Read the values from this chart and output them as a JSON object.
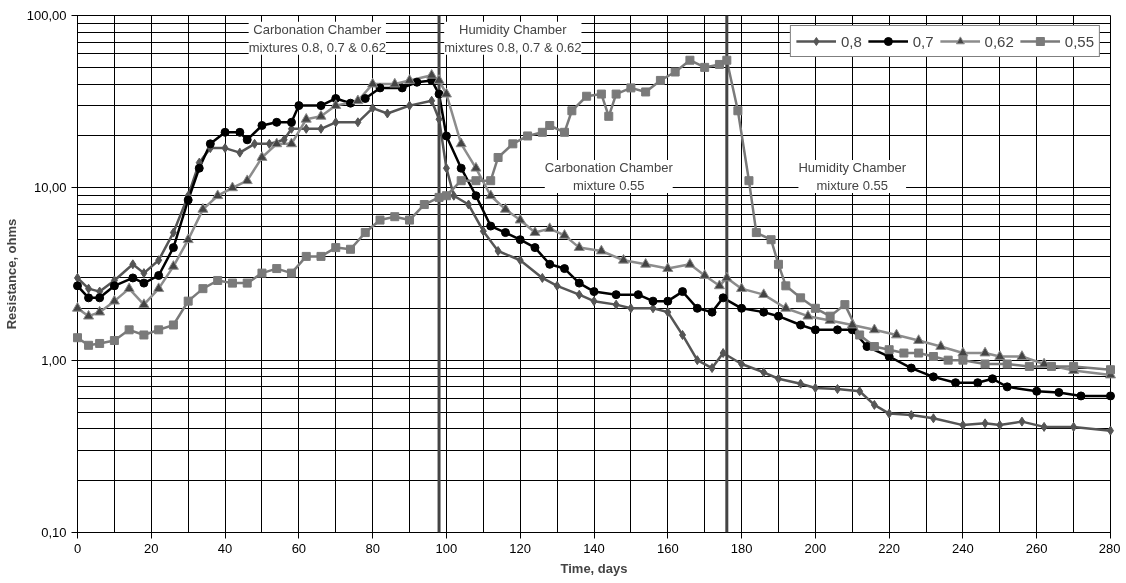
{
  "chart_data": {
    "type": "line",
    "xlabel": "Time, days",
    "ylabel": "Resistance, ohms",
    "log": "y",
    "xlim": [
      0,
      280
    ],
    "xticks": [
      0,
      20,
      40,
      60,
      80,
      100,
      120,
      140,
      160,
      180,
      200,
      220,
      240,
      260,
      280
    ],
    "ylim": [
      0.1,
      100
    ],
    "yticks": [
      {
        "value": 0.1,
        "label": "0,10"
      },
      {
        "value": 1,
        "label": "1,00"
      },
      {
        "value": 10,
        "label": "10,00"
      },
      {
        "value": 100,
        "label": "100,00"
      }
    ],
    "grid": true,
    "legend": "top right",
    "ref_lines": [
      {
        "axis": "x",
        "value": 98,
        "color": "#444444"
      },
      {
        "axis": "x",
        "value": 176,
        "color": "#444444"
      }
    ],
    "annotations": [
      "Carbonation Chamber\nmixtures 0.8, 0.7 & 0.62",
      "Humidity Chamber\nmixtures 0.8, 0.7 & 0.62",
      "Carbonation Chamber\nmixture 0.55",
      "Humidity Chamber\nmixture 0.55"
    ],
    "series": [
      {
        "name": "0,8",
        "color": "#555555",
        "marker": "diamond",
        "x": [
          0,
          3,
          6,
          10,
          15,
          18,
          22,
          26,
          30,
          33,
          36,
          40,
          44,
          48,
          52,
          56,
          58,
          62,
          66,
          70,
          76,
          80,
          84,
          90,
          96,
          98,
          100,
          102,
          106,
          110,
          114,
          120,
          126,
          130,
          136,
          140,
          146,
          150,
          156,
          160,
          164,
          168,
          172,
          175,
          180,
          186,
          190,
          196,
          200,
          206,
          212,
          216,
          220,
          226,
          232,
          240,
          246,
          250,
          256,
          262,
          270,
          280
        ],
        "values": [
          3.0,
          2.6,
          2.5,
          2.9,
          3.6,
          3.2,
          3.8,
          5.5,
          9,
          14,
          17,
          17,
          16,
          18,
          18,
          19,
          22,
          22,
          22,
          24,
          24,
          29,
          27,
          30,
          32,
          25,
          13,
          9,
          8,
          5.6,
          4.3,
          3.8,
          3.0,
          2.7,
          2.4,
          2.2,
          2.1,
          2.0,
          2.0,
          1.9,
          1.4,
          1.0,
          0.9,
          1.1,
          0.95,
          0.85,
          0.78,
          0.73,
          0.69,
          0.68,
          0.66,
          0.55,
          0.49,
          0.48,
          0.46,
          0.42,
          0.43,
          0.42,
          0.44,
          0.41,
          0.41,
          0.39
        ]
      },
      {
        "name": "0,7",
        "color": "#000000",
        "marker": "circle",
        "x": [
          0,
          3,
          6,
          10,
          15,
          18,
          22,
          26,
          30,
          33,
          36,
          40,
          44,
          46,
          50,
          54,
          58,
          60,
          66,
          70,
          74,
          78,
          82,
          88,
          92,
          96,
          98,
          100,
          104,
          108,
          112,
          116,
          120,
          124,
          128,
          132,
          136,
          140,
          146,
          152,
          156,
          160,
          164,
          168,
          172,
          175,
          180,
          186,
          190,
          196,
          200,
          206,
          210,
          214,
          220,
          226,
          232,
          238,
          244,
          248,
          252,
          260,
          266,
          272,
          280
        ],
        "values": [
          2.7,
          2.3,
          2.3,
          2.7,
          3.0,
          2.8,
          3.1,
          4.5,
          8.5,
          13,
          18,
          21,
          21,
          19,
          23,
          24,
          24,
          30,
          30,
          33,
          31,
          33,
          38,
          38,
          41,
          42,
          35,
          20,
          13,
          9,
          6,
          5.5,
          5.0,
          4.5,
          3.6,
          3.4,
          2.8,
          2.5,
          2.4,
          2.4,
          2.2,
          2.2,
          2.5,
          2.0,
          1.9,
          2.3,
          2.0,
          1.9,
          1.8,
          1.6,
          1.5,
          1.5,
          1.5,
          1.2,
          1.05,
          0.9,
          0.8,
          0.74,
          0.74,
          0.78,
          0.7,
          0.66,
          0.65,
          0.62,
          0.62
        ]
      },
      {
        "name": "0,62",
        "color": "#8c8c8c",
        "marker": "triangle",
        "x": [
          0,
          3,
          6,
          10,
          14,
          18,
          22,
          26,
          30,
          34,
          38,
          42,
          46,
          50,
          54,
          58,
          62,
          66,
          70,
          76,
          80,
          86,
          90,
          96,
          98,
          100,
          104,
          108,
          112,
          116,
          120,
          124,
          128,
          132,
          136,
          142,
          148,
          154,
          160,
          166,
          170,
          174,
          176,
          180,
          186,
          192,
          198,
          204,
          210,
          216,
          222,
          228,
          234,
          240,
          246,
          250,
          256,
          262,
          270,
          280
        ],
        "values": [
          2.0,
          1.8,
          1.9,
          2.2,
          2.6,
          2.1,
          2.6,
          3.5,
          5.0,
          7.5,
          9,
          10,
          11,
          15,
          18,
          18,
          25,
          26,
          30,
          32,
          40,
          40,
          42,
          45,
          42,
          35,
          18,
          13,
          9,
          7.5,
          6.5,
          5.5,
          5.8,
          5.3,
          4.5,
          4.3,
          3.8,
          3.6,
          3.4,
          3.6,
          3.1,
          2.7,
          3.0,
          2.6,
          2.4,
          2.0,
          1.8,
          1.7,
          1.6,
          1.5,
          1.4,
          1.3,
          1.2,
          1.1,
          1.1,
          1.05,
          1.05,
          0.95,
          0.87,
          0.82
        ]
      },
      {
        "name": "0,55",
        "color": "#7a7a7a",
        "marker": "square",
        "x": [
          0,
          3,
          6,
          10,
          14,
          18,
          22,
          26,
          30,
          34,
          38,
          42,
          46,
          50,
          54,
          58,
          62,
          66,
          70,
          74,
          78,
          82,
          86,
          90,
          94,
          98,
          100,
          104,
          108,
          112,
          114,
          118,
          122,
          126,
          128,
          132,
          134,
          138,
          142,
          144,
          146,
          150,
          154,
          158,
          162,
          166,
          170,
          174,
          176,
          179,
          182,
          184,
          188,
          190,
          192,
          196,
          200,
          204,
          208,
          212,
          216,
          220,
          224,
          228,
          232,
          236,
          240,
          246,
          252,
          258,
          264,
          270,
          280
        ],
        "values": [
          1.35,
          1.22,
          1.25,
          1.3,
          1.5,
          1.4,
          1.5,
          1.6,
          2.2,
          2.6,
          2.9,
          2.8,
          2.8,
          3.2,
          3.4,
          3.2,
          4.0,
          4.0,
          4.5,
          4.4,
          5.5,
          6.5,
          6.8,
          6.5,
          8,
          8.8,
          9,
          11,
          11,
          11,
          15,
          18,
          20,
          21,
          23,
          21,
          28,
          34,
          35,
          26,
          35,
          38,
          36,
          42,
          47,
          55,
          50,
          52,
          55,
          28,
          11,
          5.5,
          5,
          3.6,
          2.7,
          2.3,
          2.0,
          1.8,
          2.1,
          1.4,
          1.2,
          1.15,
          1.1,
          1.1,
          1.05,
          1.0,
          1.0,
          0.95,
          0.95,
          0.92,
          0.92,
          0.92,
          0.88
        ]
      }
    ]
  }
}
